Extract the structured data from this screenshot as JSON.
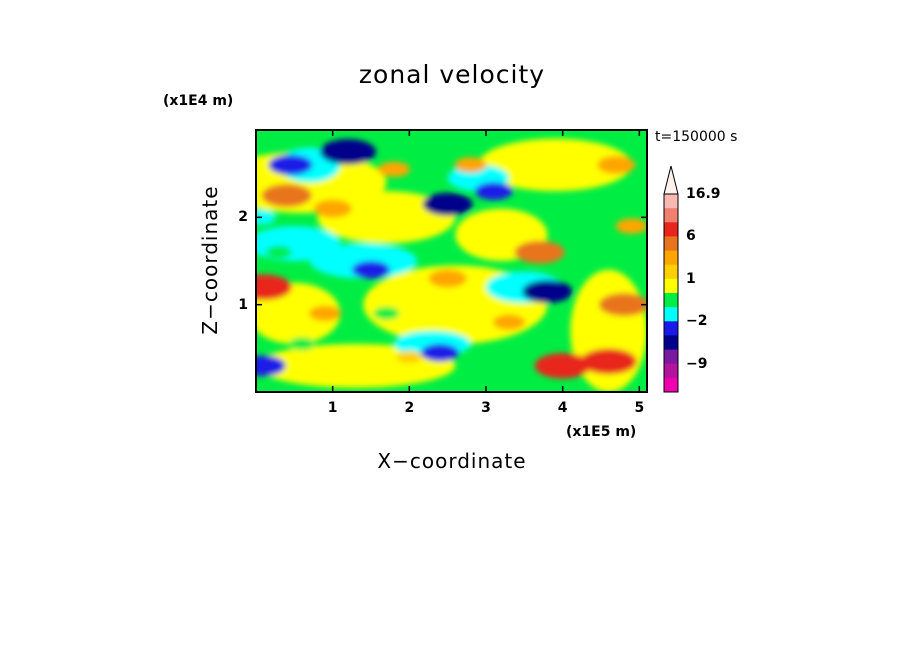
{
  "chart_data": {
    "type": "heatmap",
    "title": "zonal velocity",
    "xlabel": "X−coordinate",
    "ylabel": "Z−coordinate",
    "x_unit_label": "(x1E5 m)",
    "y_unit_label": "(x1E4 m)",
    "time_label": "t=150000 s",
    "xlim": [
      0,
      5.1
    ],
    "ylim": [
      0,
      3.0
    ],
    "x_ticks": [
      1,
      2,
      3,
      4,
      5
    ],
    "y_ticks": [
      1,
      2
    ],
    "colorbar": {
      "labels": [
        {
          "value": 16.9,
          "text": "16.9"
        },
        {
          "value": 6,
          "text": "6"
        },
        {
          "value": 1,
          "text": "1"
        },
        {
          "value": -2,
          "text": "−2"
        },
        {
          "value": -9,
          "text": "−9"
        }
      ],
      "bands": [
        {
          "lo": 12,
          "hi": 16.9,
          "color": "#f7b9b2"
        },
        {
          "lo": 8,
          "hi": 12,
          "color": "#f08070"
        },
        {
          "lo": 6,
          "hi": 8,
          "color": "#e8261e"
        },
        {
          "lo": 4,
          "hi": 6,
          "color": "#e8741e"
        },
        {
          "lo": 2,
          "hi": 4,
          "color": "#ffa500"
        },
        {
          "lo": 1,
          "hi": 2,
          "color": "#ffd000"
        },
        {
          "lo": 0,
          "hi": 1,
          "color": "#ffff00"
        },
        {
          "lo": -1,
          "hi": 0,
          "color": "#00ee44"
        },
        {
          "lo": -2,
          "hi": -1,
          "color": "#00ffff"
        },
        {
          "lo": -4,
          "hi": -2,
          "color": "#1a1ae8"
        },
        {
          "lo": -6,
          "hi": -4,
          "color": "#00008b"
        },
        {
          "lo": -9,
          "hi": -6,
          "color": "#7a1aa0"
        },
        {
          "lo": -12,
          "hi": -9,
          "color": "#b4149c"
        },
        {
          "lo": -16,
          "hi": -12,
          "color": "#ee00b0"
        }
      ],
      "extend_top": true
    },
    "colors": {
      "positive_strong": "#e8261e",
      "positive_med": "#ffa500",
      "positive_weak": "#ffff00",
      "near_zero": "#00ee44",
      "negative_weak": "#00ffff",
      "negative_med": "#1a1ae8",
      "negative_strong": "#00008b"
    },
    "features": [
      {
        "x": 0.45,
        "z": 2.6,
        "value": -4
      },
      {
        "x": 1.2,
        "z": 2.75,
        "value": -6
      },
      {
        "x": 0.4,
        "z": 2.25,
        "value": 5
      },
      {
        "x": 1.0,
        "z": 2.1,
        "value": 3
      },
      {
        "x": 1.8,
        "z": 2.55,
        "value": 2
      },
      {
        "x": 2.5,
        "z": 2.15,
        "value": -5
      },
      {
        "x": 3.1,
        "z": 2.3,
        "value": -3
      },
      {
        "x": 2.8,
        "z": 2.6,
        "value": 2
      },
      {
        "x": 3.7,
        "z": 1.6,
        "value": 5
      },
      {
        "x": 2.5,
        "z": 1.3,
        "value": 3
      },
      {
        "x": 1.5,
        "z": 1.4,
        "value": -3
      },
      {
        "x": 3.8,
        "z": 1.15,
        "value": -5
      },
      {
        "x": 0.1,
        "z": 1.2,
        "value": 6
      },
      {
        "x": 0.3,
        "z": 1.6,
        "value": -1
      },
      {
        "x": 0.6,
        "z": 0.55,
        "value": -1
      },
      {
        "x": 2.0,
        "z": 0.4,
        "value": 1
      },
      {
        "x": 2.4,
        "z": 0.45,
        "value": -3
      },
      {
        "x": 3.3,
        "z": 0.8,
        "value": 2
      },
      {
        "x": 4.0,
        "z": 0.3,
        "value": 6
      },
      {
        "x": 4.6,
        "z": 0.35,
        "value": 6
      },
      {
        "x": 4.8,
        "z": 1.0,
        "value": 5
      },
      {
        "x": 4.9,
        "z": 1.9,
        "value": 2
      },
      {
        "x": 4.7,
        "z": 2.6,
        "value": 3
      },
      {
        "x": 0.9,
        "z": 0.9,
        "value": 2
      },
      {
        "x": 1.7,
        "z": 0.9,
        "value": -1
      },
      {
        "x": 0.1,
        "z": 0.3,
        "value": -4
      },
      {
        "x": 0.05,
        "z": 2.0,
        "value": -2
      }
    ]
  }
}
